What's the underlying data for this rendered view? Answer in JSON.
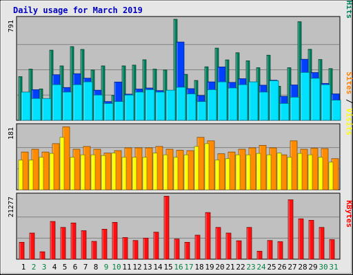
{
  "chart_data": [
    {
      "type": "bar",
      "panel": "pages-files-hits",
      "title": "Daily usage for March 2019",
      "ylim": [
        0,
        791
      ],
      "y_tick_label": "791",
      "right_label_parts": [
        {
          "text": "Pages",
          "color": "#00c8ff"
        },
        {
          "text": " / ",
          "color": "#000000"
        },
        {
          "text": "Files",
          "color": "#0040ff"
        },
        {
          "text": " / ",
          "color": "#000000"
        },
        {
          "text": "Hits",
          "color": "#00805c"
        }
      ],
      "categories": [
        "1",
        "2",
        "3",
        "4",
        "5",
        "6",
        "7",
        "8",
        "9",
        "10",
        "11",
        "12",
        "13",
        "14",
        "15",
        "16",
        "17",
        "18",
        "19",
        "20",
        "21",
        "22",
        "23",
        "24",
        "25",
        "26",
        "27",
        "28",
        "29",
        "30",
        "31"
      ],
      "series": [
        {
          "name": "Hits",
          "color": "#00805c",
          "values": [
            342,
            401,
            246,
            549,
            426,
            577,
            555,
            394,
            426,
            195,
            426,
            432,
            474,
            401,
            394,
            791,
            360,
            312,
            419,
            565,
            473,
            529,
            466,
            412,
            510,
            267,
            412,
            772,
            556,
            476,
            405
          ]
        },
        {
          "name": "Files",
          "color": "#0040ff",
          "values": [
            221,
            240,
            147,
            357,
            257,
            365,
            330,
            236,
            147,
            300,
            205,
            245,
            253,
            233,
            194,
            613,
            248,
            194,
            301,
            418,
            297,
            326,
            300,
            275,
            314,
            188,
            277,
            478,
            374,
            289,
            207
          ]
        },
        {
          "name": "Pages",
          "color": "#00e0ff",
          "values": [
            221,
            171,
            171,
            279,
            221,
            279,
            301,
            198,
            132,
            147,
            198,
            221,
            240,
            221,
            236,
            259,
            207,
            147,
            240,
            301,
            253,
            279,
            301,
            221,
            310,
            132,
            181,
            375,
            329,
            279,
            158
          ]
        }
      ]
    },
    {
      "type": "bar",
      "panel": "sites-visits",
      "ylim": [
        0,
        181
      ],
      "y_tick_label": "181",
      "right_label_parts": [
        {
          "text": "Sites",
          "color": "#ff8000"
        },
        {
          "text": " / ",
          "color": "#000000"
        },
        {
          "text": "Visits",
          "color": "#ffff00"
        }
      ],
      "categories": [
        "1",
        "2",
        "3",
        "4",
        "5",
        "6",
        "7",
        "8",
        "9",
        "10",
        "11",
        "12",
        "13",
        "14",
        "15",
        "16",
        "17",
        "18",
        "19",
        "20",
        "21",
        "22",
        "23",
        "24",
        "25",
        "26",
        "27",
        "28",
        "29",
        "30",
        "31"
      ],
      "series": [
        {
          "name": "Sites",
          "color": "#ff8c00",
          "values": [
            108,
            116,
            108,
            132,
            180,
            116,
            124,
            116,
            105,
            112,
            120,
            120,
            120,
            124,
            116,
            113,
            112,
            150,
            140,
            103,
            108,
            116,
            120,
            127,
            120,
            100,
            140,
            116,
            119,
            118,
            89
          ]
        },
        {
          "name": "Visits",
          "color": "#ffff00",
          "values": [
            85,
            85,
            93,
            104,
            150,
            93,
            100,
            100,
            98,
            105,
            93,
            93,
            93,
            105,
            100,
            93,
            100,
            124,
            132,
            85,
            89,
            100,
            100,
            104,
            100,
            105,
            93,
            104,
            100,
            93,
            79
          ]
        }
      ]
    },
    {
      "type": "bar",
      "panel": "kbytes",
      "ylim": [
        0,
        21277
      ],
      "y_tick_label": "21277",
      "right_label_parts": [
        {
          "text": "KBytes",
          "color": "#ff0000"
        }
      ],
      "categories": [
        "1",
        "2",
        "3",
        "4",
        "5",
        "6",
        "7",
        "8",
        "9",
        "10",
        "11",
        "12",
        "13",
        "14",
        "15",
        "16",
        "17",
        "18",
        "19",
        "20",
        "21",
        "22",
        "23",
        "24",
        "25",
        "26",
        "27",
        "28",
        "29",
        "30",
        "31"
      ],
      "series": [
        {
          "name": "KBytes",
          "color": "#ff1010",
          "values": [
            5700,
            8800,
            2500,
            12700,
            10700,
            12200,
            9600,
            6000,
            10100,
            12400,
            7300,
            6300,
            7100,
            9100,
            21200,
            6800,
            5700,
            8100,
            15700,
            10700,
            8800,
            6200,
            10700,
            2700,
            6300,
            5900,
            20000,
            13600,
            13100,
            10700,
            6600
          ]
        }
      ]
    }
  ],
  "x_axis": {
    "labels": [
      "1",
      "2",
      "3",
      "4",
      "5",
      "6",
      "7",
      "8",
      "9",
      "10",
      "11",
      "12",
      "13",
      "14",
      "15",
      "16",
      "17",
      "18",
      "19",
      "20",
      "21",
      "22",
      "23",
      "24",
      "25",
      "26",
      "27",
      "28",
      "29",
      "30",
      "31"
    ],
    "weekend_days": [
      "2",
      "3",
      "9",
      "10",
      "16",
      "17",
      "23",
      "24",
      "30",
      "31"
    ],
    "weekday_color": "#000000",
    "weekend_color": "#008040"
  },
  "colors": {
    "title": "#0000c0",
    "panel_background": "#c0c0c0",
    "page_background": "#e6e6e6",
    "gridline": "#808080"
  }
}
